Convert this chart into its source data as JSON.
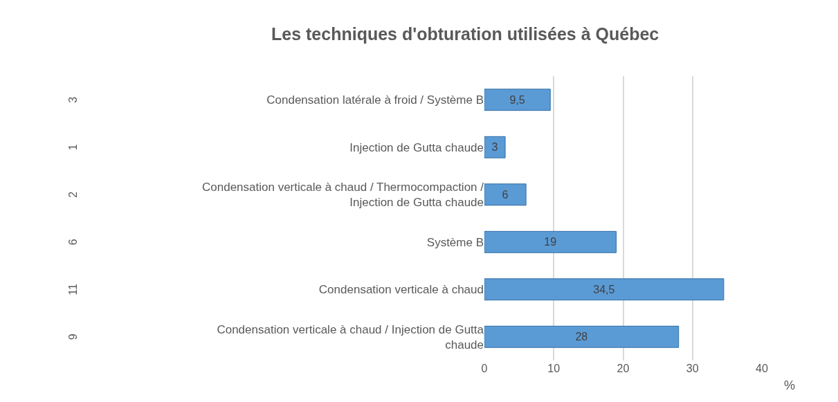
{
  "chart_data": {
    "type": "bar",
    "orientation": "horizontal",
    "title": "Les techniques d'obturation utilisées à Québec",
    "xlabel": "%",
    "categories": [
      "Condensation latérale à froid / Système B",
      "Injection de Gutta chaude",
      "Condensation verticale à chaud / Thermocompaction / Injection de Gutta chaude",
      "Système B",
      "Condensation verticale à chaud",
      "Condensation verticale à chaud / Injection de Gutta chaude"
    ],
    "values": [
      9.5,
      3,
      6,
      19,
      34.5,
      28
    ],
    "value_labels": [
      "9,5",
      "3",
      "6",
      "19",
      "34,5",
      "28"
    ],
    "color": "#5b9bd5",
    "xlim": [
      0,
      40
    ],
    "xticks": [
      0,
      10,
      20,
      30,
      40
    ],
    "grid": "x",
    "annotations": [
      "3",
      "1",
      "2",
      "6",
      "11",
      "9"
    ]
  }
}
